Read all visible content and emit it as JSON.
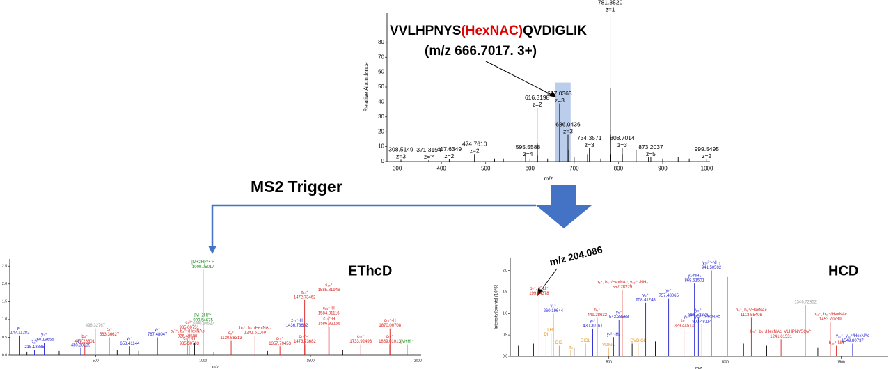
{
  "chart_data": [
    {
      "type": "spectrum",
      "x_label": "m/z",
      "y_label": "Relative Abundance",
      "sequence": [
        "VVLHPNYS",
        "(HexNAC)",
        "QVDIGLIK"
      ],
      "precursor": "(m/z 666.7017. 3+)",
      "xlim": [
        277,
        1007
      ],
      "ylim": [
        0,
        100
      ],
      "xticks": [
        300,
        400,
        500,
        600,
        700,
        800,
        900,
        1000
      ],
      "yticks": [
        0,
        10,
        20,
        30,
        40,
        50,
        60,
        70,
        80
      ],
      "highlight": {
        "xlim": [
          657,
          692
        ],
        "ylim": [
          0,
          53
        ],
        "color": "#a9c0e6"
      },
      "peaks": [
        {
          "mz": 308.5149,
          "intensity": 1.2,
          "labels": [
            "308.5149",
            "z=3"
          ]
        },
        {
          "mz": 371.3154,
          "intensity": 1,
          "labels": [
            "371.3154",
            "z=?"
          ]
        },
        {
          "mz": 417.6349,
          "intensity": 1.5,
          "labels": [
            "417.6349",
            "z=2"
          ]
        },
        {
          "mz": 474.761,
          "intensity": 5,
          "labels": [
            "474.7610",
            "z=2"
          ]
        },
        {
          "mz": 595.5588,
          "intensity": 3,
          "labels": [
            "595.5588",
            "z=4"
          ]
        },
        {
          "mz": 616.3198,
          "intensity": 36,
          "labels": [
            "616.3198",
            "z=2"
          ]
        },
        {
          "mz": 667.0363,
          "intensity": 39,
          "labels": [
            "667.0363",
            "z=3"
          ]
        },
        {
          "mz": 686.0436,
          "intensity": 18,
          "labels": [
            "686.0436",
            "z=3"
          ]
        },
        {
          "mz": 734.3571,
          "intensity": 9,
          "labels": [
            "734.3571",
            "z=3"
          ]
        },
        {
          "mz": 781.352,
          "intensity": 100,
          "labels": [
            "781.3520",
            "z=1"
          ]
        },
        {
          "mz": 808.7014,
          "intensity": 9,
          "labels": [
            "808.7014",
            "z=3"
          ]
        },
        {
          "mz": 873.2037,
          "intensity": 3,
          "labels": [
            "873.2037",
            "z=5"
          ]
        },
        {
          "mz": 999.5495,
          "intensity": 1.5,
          "labels": [
            "999.5495",
            "z=2"
          ]
        },
        {
          "mz": 475.26,
          "intensity": 3
        },
        {
          "mz": 520,
          "intensity": 2
        },
        {
          "mz": 540,
          "intensity": 2
        },
        {
          "mz": 580,
          "intensity": 3
        },
        {
          "mz": 590,
          "intensity": 5
        },
        {
          "mz": 600,
          "intensity": 2
        },
        {
          "mz": 616.82,
          "intensity": 12
        },
        {
          "mz": 617.3,
          "intensity": 4
        },
        {
          "mz": 640,
          "intensity": 2
        },
        {
          "mz": 667.37,
          "intensity": 14
        },
        {
          "mz": 667.7,
          "intensity": 6
        },
        {
          "mz": 686.38,
          "intensity": 8
        },
        {
          "mz": 700,
          "intensity": 3
        },
        {
          "mz": 730,
          "intensity": 5
        },
        {
          "mz": 734.7,
          "intensity": 8
        },
        {
          "mz": 760,
          "intensity": 2
        },
        {
          "mz": 781.85,
          "intensity": 49
        },
        {
          "mz": 782.35,
          "intensity": 18
        },
        {
          "mz": 782.85,
          "intensity": 5
        },
        {
          "mz": 809.03,
          "intensity": 5
        },
        {
          "mz": 840,
          "intensity": 8
        },
        {
          "mz": 868,
          "intensity": 3
        },
        {
          "mz": 900,
          "intensity": 2
        },
        {
          "mz": 935,
          "intensity": 3
        },
        {
          "mz": 960,
          "intensity": 2
        }
      ]
    },
    {
      "type": "spectrum",
      "title": "EThcD",
      "x_label": "m/z",
      "y_label": "Intensity [counts] (10^5)",
      "xlim": [
        100,
        2015
      ],
      "ylim": [
        0,
        2.7
      ],
      "xticks": [
        500,
        1000,
        1500,
        2000
      ],
      "yticks": [
        {
          "value": 0,
          "label": "0.0"
        },
        0.5,
        {
          "value": 1,
          "label": "1.0"
        },
        1.5,
        {
          "value": 2,
          "label": "2.0"
        },
        2.5
      ],
      "peaks": [
        {
          "mz": 147.11,
          "intensity": 0.55,
          "color": "#1f1fd0",
          "labels": [
            "y₁⁺",
            "147.11282"
          ]
        },
        {
          "mz": 215.14,
          "intensity": 0.15,
          "color": "#1f1fd0",
          "labels": [
            "z₂⁺",
            "215.13885"
          ]
        },
        {
          "mz": 260.2,
          "intensity": 0.35,
          "color": "#1f1fd0",
          "labels": [
            "y₂⁺",
            "260.19656"
          ]
        },
        {
          "mz": 430.3,
          "intensity": 0.2,
          "color": "#1f1fd0",
          "labels": [
            "y₃⁺",
            "430.30139"
          ]
        },
        {
          "mz": 449.29,
          "intensity": 0.3,
          "color": "#d8201b",
          "labels": [
            "b₄⁺",
            "449.28601"
          ]
        },
        {
          "mz": 498.33,
          "intensity": 0.75,
          "color": "#999999",
          "labels": [
            "498.32767"
          ]
        },
        {
          "mz": 563.37,
          "intensity": 0.5,
          "color": "#d8201b",
          "labels": [
            "c₄⁺",
            "563.36627"
          ]
        },
        {
          "mz": 658.41,
          "intensity": 0.25,
          "color": "#1f1fd0",
          "labels": [
            "y₆⁺",
            "658.41144"
          ]
        },
        {
          "mz": 787.48,
          "intensity": 0.5,
          "color": "#1f1fd0",
          "labels": [
            "y₇⁺",
            "787.48047"
          ]
        },
        {
          "mz": 926.5,
          "intensity": 0.45,
          "color": "#d8201b",
          "labels": [
            "b₈²⁺, b₈²⁺/HexNAc",
            "926.49500"
          ]
        },
        {
          "mz": 935.01,
          "intensity": 0.7,
          "color": "#d8201b",
          "labels": [
            "c₈²⁺",
            "935.00751"
          ]
        },
        {
          "mz": 935.51,
          "intensity": 0.25,
          "color": "#d8201b",
          "labels": [
            "c₉²⁺-H",
            "935.50793"
          ]
        },
        {
          "mz": 999.55,
          "intensity": 0.9,
          "color": "#1a8a1a",
          "labels": [
            "[M+2H]²⁺",
            "999.54675"
          ]
        },
        {
          "mz": 1000.05,
          "intensity": 2.4,
          "color": "#1a8a1a",
          "labels": [
            "[M+2H]²⁺•-H",
            "1000.05017"
          ]
        },
        {
          "mz": 1000.55,
          "intensity": 0.8,
          "color": "#999999",
          "labels": [
            "1000.54527"
          ]
        },
        {
          "mz": 1130.58,
          "intensity": 0.4,
          "color": "#d8201b",
          "labels": [
            "c₈⁺",
            "1130.58313"
          ]
        },
        {
          "mz": 1241.61,
          "intensity": 0.55,
          "color": "#d8201b",
          "labels": [
            "b₉⁺, b₉⁺/HexNAc",
            "1241.61169"
          ]
        },
        {
          "mz": 1357.7,
          "intensity": 0.25,
          "color": "#d8201b",
          "labels": [
            "c₁₀⁺",
            "1357.70453"
          ]
        },
        {
          "mz": 1436.74,
          "intensity": 0.75,
          "color": "#1f1fd0",
          "labels": [
            "z₁₁⁺-H",
            "1436.73682"
          ]
        },
        {
          "mz": 1472.73,
          "intensity": 1.55,
          "color": "#d8201b",
          "labels": [
            "c₁₃⁺",
            "1472.73462"
          ]
        },
        {
          "mz": 1473.74,
          "intensity": 0.3,
          "color": "#d8201b",
          "labels": [
            "c₁₂⁺-H",
            "1473.73682"
          ]
        },
        {
          "mz": 1584.81,
          "intensity": 1.1,
          "color": "#d8201b",
          "labels": [
            "c₁₄⁺-H",
            "1584.81116"
          ]
        },
        {
          "mz": 1585.82,
          "intensity": 1.75,
          "color": "#d8201b",
          "labels": [
            "c₁₄⁺",
            "1585.81946"
          ]
        },
        {
          "mz": 1586.82,
          "intensity": 0.8,
          "color": "#d8201b",
          "labels": [
            "c₁₃⁺-H",
            "1586.82166"
          ]
        },
        {
          "mz": 1733.92,
          "intensity": 0.3,
          "color": "#d8201b",
          "labels": [
            "c₁₆⁺",
            "1733.92493"
          ]
        },
        {
          "mz": 1869.01,
          "intensity": 0.3,
          "color": "#d8201b",
          "labels": [
            "c₁₅⁺",
            "1869.01013"
          ]
        },
        {
          "mz": 1870.01,
          "intensity": 0.75,
          "color": "#d8201b",
          "labels": [
            "c₁₅⁺-H",
            "1870.00708"
          ]
        },
        {
          "mz": 1950,
          "intensity": 0.3,
          "color": "#1a8a1a",
          "labels": [
            "[M+H]⁺"
          ]
        },
        {
          "mz": 180,
          "intensity": 0.1
        },
        {
          "mz": 330,
          "intensity": 0.12
        },
        {
          "mz": 600,
          "intensity": 0.15
        },
        {
          "mz": 700,
          "intensity": 0.12
        },
        {
          "mz": 850,
          "intensity": 0.2
        },
        {
          "mz": 960,
          "intensity": 0.35
        },
        {
          "mz": 1050,
          "intensity": 0.1
        },
        {
          "mz": 1300,
          "intensity": 0.12
        },
        {
          "mz": 1650,
          "intensity": 0.15
        }
      ]
    },
    {
      "type": "spectrum",
      "title": "HCD",
      "callout": "m/z 204.086",
      "x_label": "m/z",
      "y_label": "Intensity [counts] (10^5)",
      "xlim": [
        75,
        1700
      ],
      "ylim": [
        0,
        2.3
      ],
      "xticks": [
        500,
        1000,
        1500
      ],
      "yticks": [
        {
          "value": 0,
          "label": "0.0"
        },
        0.5,
        {
          "value": 1,
          "label": "1.0"
        },
        1.5,
        {
          "value": 2,
          "label": "2.0"
        }
      ],
      "peaks": [
        {
          "mz": 199.14,
          "intensity": 1.4,
          "color": "#d8201b",
          "labels": [
            "b₂⁺, IGLI⁺",
            "199.14378"
          ]
        },
        {
          "mz": 229,
          "intensity": 0.45,
          "color": "#e8901a",
          "labels": [
            "DI"
          ]
        },
        {
          "mz": 251,
          "intensity": 0.55,
          "color": "#e8901a",
          "labels": [
            "LH⁺"
          ]
        },
        {
          "mz": 260.2,
          "intensity": 1.0,
          "color": "#1f1fd0",
          "labels": [
            "y₂⁺",
            "260.19644"
          ]
        },
        {
          "mz": 286,
          "intensity": 0.25,
          "color": "#e8901a",
          "labels": [
            "DIG"
          ]
        },
        {
          "mz": 336,
          "intensity": 0.15,
          "color": "#e8901a",
          "labels": [
            "b₃"
          ]
        },
        {
          "mz": 399,
          "intensity": 0.3,
          "color": "#e8901a",
          "labels": [
            "DIGL"
          ]
        },
        {
          "mz": 430.3,
          "intensity": 0.65,
          "color": "#1f1fd0",
          "labels": [
            "y₃⁺",
            "430.30161"
          ]
        },
        {
          "mz": 449.29,
          "intensity": 0.9,
          "color": "#d8201b",
          "labels": [
            "b₄⁺",
            "449.28632"
          ]
        },
        {
          "mz": 498,
          "intensity": 0.2,
          "color": "#e8901a",
          "labels": [
            "VDIGL"
          ]
        },
        {
          "mz": 520,
          "intensity": 0.45,
          "color": "#1f1fd0",
          "labels": [
            "y₅²⁺-H₂"
          ]
        },
        {
          "mz": 543.39,
          "intensity": 0.85,
          "color": "#1f1fd0",
          "labels": [
            "y₅⁺",
            "543.38568"
          ]
        },
        {
          "mz": 557.28,
          "intensity": 1.55,
          "color": "#d8201b",
          "labels": [
            "b₅⁺, b₅⁺/HexNAc, y₁₃³⁺-NH₃",
            "557.28229"
          ]
        },
        {
          "mz": 626,
          "intensity": 0.3,
          "color": "#e8901a",
          "labels": [
            "QVDIGL"
          ]
        },
        {
          "mz": 658.41,
          "intensity": 1.25,
          "color": "#1f1fd0",
          "labels": [
            "y₆⁺",
            "658.41248"
          ]
        },
        {
          "mz": 757.48,
          "intensity": 1.35,
          "color": "#1f1fd0",
          "labels": [
            "y₇⁺",
            "757.48065"
          ]
        },
        {
          "mz": 823.45,
          "intensity": 0.65,
          "color": "#d8201b",
          "labels": [
            "b₇⁺",
            "823.44513"
          ]
        },
        {
          "mz": 868.52,
          "intensity": 1.7,
          "color": "#1f1fd0",
          "labels": [
            "y₈-NH₃",
            "868.51501"
          ]
        },
        {
          "mz": 885.54,
          "intensity": 0.9,
          "color": "#1f1fd0",
          "labels": [
            "y₈⁺",
            "885.53876"
          ]
        },
        {
          "mz": 900.48,
          "intensity": 0.75,
          "color": "#1f1fd0",
          "labels": [
            "y₁₂²⁺, y₁₂²⁺/HexNAc",
            "900.48114"
          ]
        },
        {
          "mz": 941.51,
          "intensity": 2.0,
          "color": "#1f1fd0",
          "labels": [
            "y₁₀²⁺-NH₃",
            "941.50592"
          ]
        },
        {
          "mz": 1113.55,
          "intensity": 0.9,
          "color": "#d8201b",
          "labels": [
            "b₉⁺, b₉⁺/HexNAc",
            "1113.55408"
          ]
        },
        {
          "mz": 1241.62,
          "intensity": 0.4,
          "color": "#d8201b",
          "labels": [
            "b₉⁺, b₉⁺/HexNAc, VLHPNYSQV⁺",
            "1241.61531"
          ]
        },
        {
          "mz": 1346.73,
          "intensity": 1.2,
          "color": "#999999",
          "labels": [
            "1346.72852"
          ]
        },
        {
          "mz": 1453.71,
          "intensity": 0.8,
          "color": "#d8201b",
          "labels": [
            "b₁₁⁺, b₁₁⁺/HexNAc",
            "1453.70789"
          ]
        },
        {
          "mz": 1480,
          "intensity": 0.25,
          "color": "#d8201b",
          "labels": [
            "b₁₃⁺-NH"
          ]
        },
        {
          "mz": 1549.81,
          "intensity": 0.3,
          "color": "#1f1fd0",
          "labels": [
            "y₁₂⁺, y₁₂⁺/HexNAc",
            "1549.80737"
          ]
        },
        {
          "mz": 110,
          "intensity": 0.25
        },
        {
          "mz": 175,
          "intensity": 0.3
        },
        {
          "mz": 350,
          "intensity": 0.2
        },
        {
          "mz": 600,
          "intensity": 0.3
        },
        {
          "mz": 700,
          "intensity": 0.35
        },
        {
          "mz": 1010,
          "intensity": 1.85
        },
        {
          "mz": 1080,
          "intensity": 0.3
        },
        {
          "mz": 1180,
          "intensity": 0.25
        },
        {
          "mz": 1400,
          "intensity": 0.2
        }
      ]
    }
  ],
  "trigger": "MS2 Trigger"
}
